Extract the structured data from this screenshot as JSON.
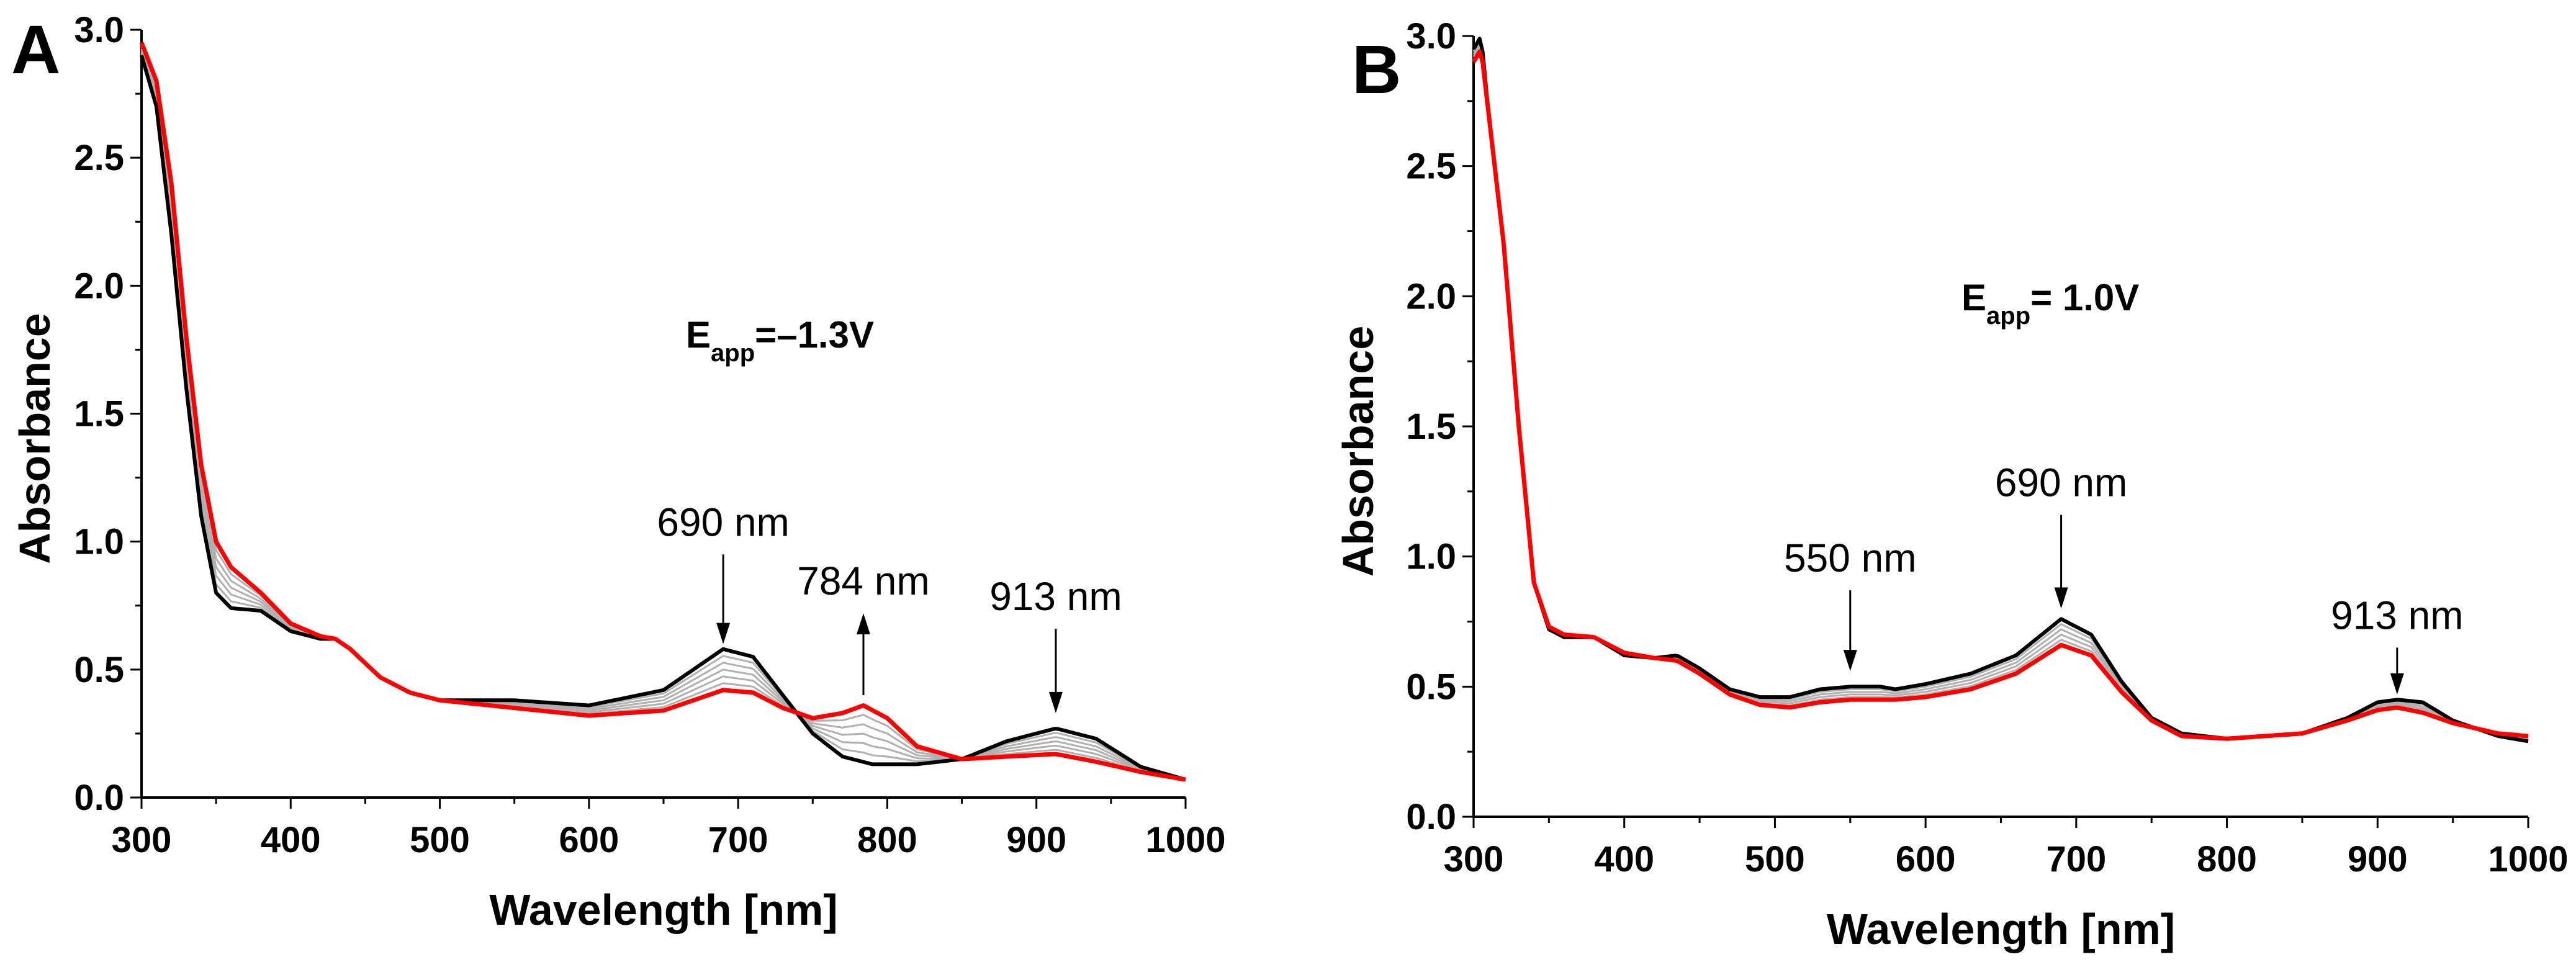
{
  "chart_data": [
    {
      "type": "line",
      "panel_label": "A",
      "xlabel": "Wavelength [nm]",
      "ylabel": "Absorbance",
      "xlim": [
        300,
        1000
      ],
      "ylim": [
        0,
        3.0
      ],
      "xticks": [
        "300",
        "400",
        "500",
        "600",
        "700",
        "800",
        "900",
        "1000"
      ],
      "yticks": [
        "0.0",
        "0.5",
        "1.0",
        "1.5",
        "2.0",
        "2.5",
        "3.0"
      ],
      "condition": {
        "main": "E",
        "sub": "app",
        "value": "=–1.3V"
      },
      "intermediate_count": 5,
      "series": [
        {
          "name": "initial",
          "color": "#000000",
          "x": [
            300,
            310,
            320,
            330,
            340,
            350,
            360,
            380,
            400,
            420,
            430,
            440,
            460,
            480,
            500,
            550,
            600,
            650,
            690,
            710,
            730,
            750,
            770,
            790,
            820,
            850,
            880,
            913,
            940,
            970,
            1000
          ],
          "y": [
            2.9,
            2.7,
            2.2,
            1.6,
            1.1,
            0.8,
            0.74,
            0.73,
            0.65,
            0.62,
            0.62,
            0.58,
            0.47,
            0.41,
            0.38,
            0.38,
            0.36,
            0.42,
            0.58,
            0.55,
            0.4,
            0.25,
            0.16,
            0.13,
            0.13,
            0.15,
            0.22,
            0.27,
            0.23,
            0.12,
            0.07
          ]
        },
        {
          "name": "final",
          "color": "#ff0000",
          "x": [
            300,
            310,
            320,
            330,
            340,
            350,
            360,
            380,
            400,
            420,
            430,
            440,
            460,
            480,
            500,
            550,
            600,
            650,
            690,
            710,
            730,
            750,
            770,
            784,
            800,
            820,
            850,
            880,
            913,
            940,
            970,
            1000
          ],
          "y": [
            2.95,
            2.8,
            2.4,
            1.8,
            1.3,
            1.0,
            0.9,
            0.8,
            0.68,
            0.63,
            0.62,
            0.58,
            0.47,
            0.41,
            0.38,
            0.35,
            0.32,
            0.34,
            0.42,
            0.41,
            0.35,
            0.31,
            0.33,
            0.36,
            0.31,
            0.2,
            0.15,
            0.16,
            0.17,
            0.14,
            0.1,
            0.07
          ]
        }
      ],
      "intermediate_color": "#b0b0b0",
      "annotations": [
        {
          "label": "690 nm",
          "x": 690,
          "from": 0.95,
          "to": 0.6,
          "direction": "down"
        },
        {
          "label": "784 nm",
          "x": 784,
          "from": 0.4,
          "to": 0.72,
          "direction": "up"
        },
        {
          "label": "913 nm",
          "x": 913,
          "from": 0.66,
          "to": 0.33,
          "direction": "down"
        }
      ]
    },
    {
      "type": "line",
      "panel_label": "B",
      "xlabel": "Wavelength [nm]",
      "ylabel": "Absorbance",
      "xlim": [
        300,
        1000
      ],
      "ylim": [
        0,
        3.0
      ],
      "xticks": [
        "300",
        "400",
        "500",
        "600",
        "700",
        "800",
        "900",
        "1000"
      ],
      "yticks": [
        "0.0",
        "0.5",
        "1.0",
        "1.5",
        "2.0",
        "2.5",
        "3.0"
      ],
      "condition": {
        "main": "E",
        "sub": "app",
        "value": "= 1.0V"
      },
      "intermediate_count": 4,
      "series": [
        {
          "name": "initial",
          "color": "#000000",
          "x": [
            300,
            305,
            310,
            320,
            330,
            340,
            350,
            360,
            380,
            400,
            420,
            435,
            450,
            470,
            490,
            510,
            530,
            550,
            570,
            580,
            600,
            630,
            660,
            690,
            710,
            730,
            750,
            770,
            800,
            850,
            880,
            900,
            913,
            930,
            950,
            980,
            1000
          ],
          "y": [
            2.95,
            3.0,
            2.7,
            2.2,
            1.5,
            0.9,
            0.72,
            0.69,
            0.69,
            0.62,
            0.61,
            0.62,
            0.57,
            0.49,
            0.46,
            0.46,
            0.49,
            0.5,
            0.5,
            0.49,
            0.51,
            0.55,
            0.62,
            0.76,
            0.7,
            0.52,
            0.38,
            0.32,
            0.3,
            0.32,
            0.38,
            0.44,
            0.45,
            0.44,
            0.37,
            0.31,
            0.29
          ]
        },
        {
          "name": "final",
          "color": "#ff0000",
          "x": [
            300,
            305,
            310,
            320,
            330,
            340,
            350,
            360,
            380,
            400,
            420,
            435,
            450,
            470,
            490,
            510,
            530,
            550,
            570,
            580,
            600,
            630,
            660,
            690,
            710,
            730,
            750,
            770,
            800,
            850,
            880,
            900,
            913,
            930,
            950,
            980,
            1000
          ],
          "y": [
            2.9,
            2.95,
            2.7,
            2.2,
            1.5,
            0.9,
            0.73,
            0.7,
            0.69,
            0.63,
            0.61,
            0.6,
            0.55,
            0.47,
            0.43,
            0.42,
            0.44,
            0.45,
            0.45,
            0.45,
            0.46,
            0.49,
            0.55,
            0.66,
            0.62,
            0.48,
            0.37,
            0.31,
            0.3,
            0.32,
            0.37,
            0.41,
            0.42,
            0.4,
            0.36,
            0.32,
            0.31
          ]
        }
      ],
      "intermediate_color": "#b0b0b0",
      "annotations": [
        {
          "label": "550 nm",
          "x": 550,
          "from": 0.87,
          "to": 0.56,
          "direction": "down"
        },
        {
          "label": "690 nm",
          "x": 690,
          "from": 1.16,
          "to": 0.8,
          "direction": "down"
        },
        {
          "label": "913 nm",
          "x": 913,
          "from": 0.65,
          "to": 0.47,
          "direction": "down"
        }
      ]
    }
  ]
}
